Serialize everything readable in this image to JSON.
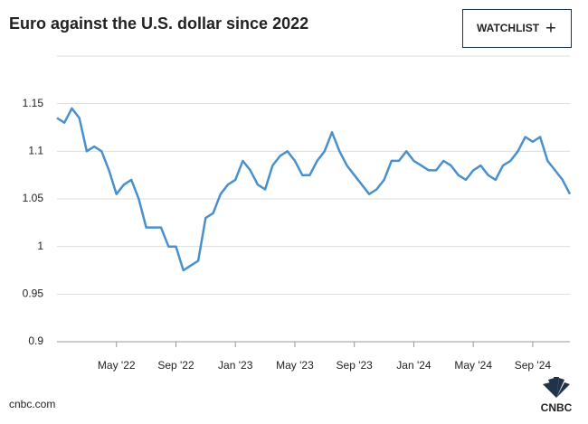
{
  "chart_data": {
    "type": "line",
    "title": "Euro against the U.S. dollar since 2022",
    "categories": [
      null,
      null,
      null,
      null,
      null,
      null,
      null,
      null,
      "May '22",
      null,
      null,
      null,
      null,
      null,
      null,
      null,
      "Sep '22",
      null,
      null,
      null,
      null,
      null,
      null,
      null,
      "Jan '23",
      null,
      null,
      null,
      null,
      null,
      null,
      null,
      "May '23",
      null,
      null,
      null,
      null,
      null,
      null,
      null,
      "Sep '23",
      null,
      null,
      null,
      null,
      null,
      null,
      null,
      "Jan '24",
      null,
      null,
      null,
      null,
      null,
      null,
      null,
      "May '24",
      null,
      null,
      null,
      null,
      null,
      null,
      null,
      "Sep '24",
      null,
      null,
      null,
      null,
      null
    ],
    "values": [
      1.135,
      1.13,
      1.145,
      1.135,
      1.1,
      1.105,
      1.1,
      1.08,
      1.055,
      1.065,
      1.07,
      1.05,
      1.02,
      1.02,
      1.02,
      1.0,
      1.0,
      0.975,
      0.98,
      0.985,
      1.03,
      1.035,
      1.055,
      1.065,
      1.07,
      1.09,
      1.08,
      1.065,
      1.06,
      1.085,
      1.095,
      1.1,
      1.09,
      1.075,
      1.075,
      1.09,
      1.1,
      1.12,
      1.1,
      1.085,
      1.075,
      1.065,
      1.055,
      1.06,
      1.07,
      1.09,
      1.09,
      1.1,
      1.09,
      1.085,
      1.08,
      1.08,
      1.09,
      1.085,
      1.075,
      1.07,
      1.08,
      1.085,
      1.075,
      1.07,
      1.085,
      1.09,
      1.1,
      1.115,
      1.11,
      1.115,
      1.09,
      1.08,
      1.07,
      1.055
    ],
    "color": "#4a90cc",
    "ylim": [
      0.9,
      1.2
    ],
    "yticks": [
      0.9,
      0.95,
      1,
      1.05,
      1.1,
      1.15
    ],
    "grid": true
  },
  "button": {
    "label": "WATCHLIST",
    "icon": "+"
  },
  "footer": {
    "source": "cnbc.com",
    "logo": "CNBC"
  }
}
